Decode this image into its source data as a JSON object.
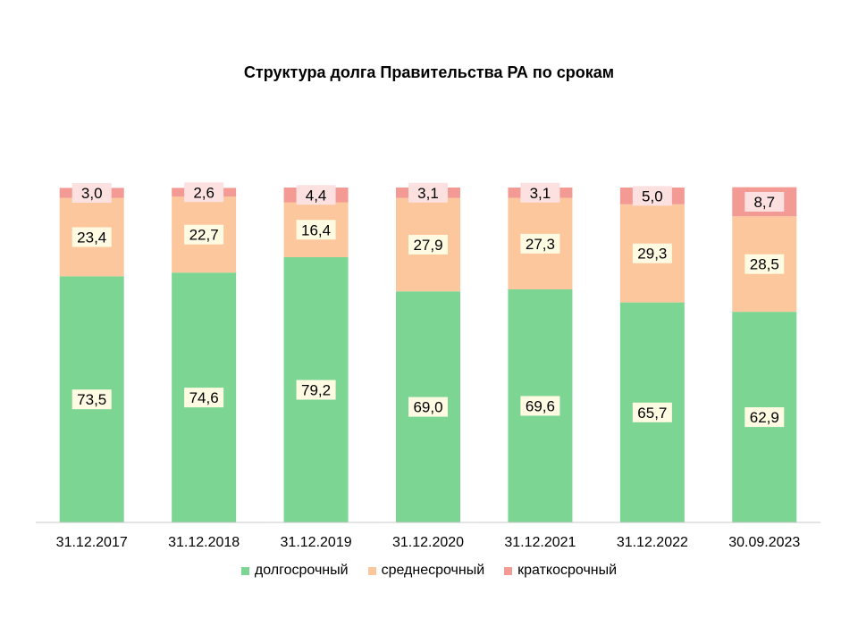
{
  "chart_data": {
    "type": "bar",
    "stacked": true,
    "title": "Структура долга Правительства РА по срокам",
    "categories": [
      "31.12.2017",
      "31.12.2018",
      "31.12.2019",
      "31.12.2020",
      "31.12.2021",
      "31.12.2022",
      "30.09.2023"
    ],
    "series": [
      {
        "name": "долгосрочный",
        "color": "#7dd594",
        "values": [
          73.5,
          74.6,
          79.2,
          69.0,
          69.6,
          65.7,
          62.9
        ],
        "labels": [
          "73,5",
          "74,6",
          "79,2",
          "69,0",
          "69,6",
          "65,7",
          "62,9"
        ]
      },
      {
        "name": "среднесрочный",
        "color": "#fcc79c",
        "values": [
          23.4,
          22.7,
          16.4,
          27.9,
          27.3,
          29.3,
          28.5
        ],
        "labels": [
          "23,4",
          "22,7",
          "16,4",
          "27,9",
          "27,3",
          "29,3",
          "28,5"
        ]
      },
      {
        "name": "краткосрочный",
        "color": "#f29a93",
        "values": [
          3.0,
          2.6,
          4.4,
          3.1,
          3.1,
          5.0,
          8.7
        ],
        "labels": [
          "3,0",
          "2,6",
          "4,4",
          "3,1",
          "3,1",
          "5,0",
          "8,7"
        ]
      }
    ],
    "ylim": [
      0,
      100
    ],
    "grid": false,
    "legend_position": "bottom",
    "data_label_background": "#fffbe3",
    "short_label_background": "#fde0e0"
  }
}
